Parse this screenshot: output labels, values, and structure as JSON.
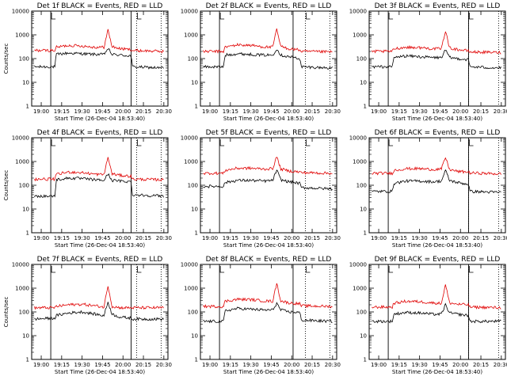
{
  "page": {
    "background": "#ffffff",
    "colors": {
      "events": "#000000",
      "lld": "#e00000",
      "frame": "#000000"
    }
  },
  "chart_data": [
    {
      "type": "line",
      "title": "Det 1f BLACK = Events, RED = LLD",
      "xlabel": "Start Time (26-Dec-04 18:53:40)",
      "ylabel": "Counts/sec",
      "y_scale": "log",
      "ylim": [
        1,
        10000
      ],
      "y_ticks": [
        "1",
        "10",
        "100",
        "1000",
        "10000"
      ],
      "x_ticks": [
        "19:00",
        "19:15",
        "19:30",
        "19:45",
        "20:00",
        "20:15",
        "20:30"
      ],
      "series": [
        {
          "color": "#000000",
          "x": [
            "18:55",
            "19:10",
            "19:11",
            "19:20",
            "19:30",
            "19:40",
            "19:46",
            "19:49",
            "19:52",
            "19:58",
            "20:06",
            "20:07",
            "20:30"
          ],
          "values": [
            45,
            45,
            150,
            170,
            160,
            150,
            150,
            260,
            150,
            140,
            130,
            45,
            40
          ]
        },
        {
          "color": "#e00000",
          "x": [
            "18:55",
            "19:10",
            "19:11",
            "19:20",
            "19:30",
            "19:40",
            "19:46",
            "19:49",
            "19:52",
            "19:58",
            "20:06",
            "20:07",
            "20:30"
          ],
          "values": [
            220,
            220,
            300,
            360,
            340,
            300,
            300,
            1600,
            320,
            260,
            240,
            220,
            200
          ]
        }
      ]
    },
    {
      "type": "line",
      "title": "Det 2f BLACK = Events, RED = LLD",
      "xlabel": "Start Time (26-Dec-04 18:53:40)",
      "ylabel": "",
      "y_scale": "log",
      "ylim": [
        1,
        10000
      ],
      "y_ticks": [
        "1",
        "10",
        "100",
        "1000",
        "10000"
      ],
      "x_ticks": [
        "19:00",
        "19:15",
        "19:30",
        "19:45",
        "20:00",
        "20:15",
        "20:30"
      ],
      "series": [
        {
          "color": "#000000",
          "x": [
            "18:55",
            "19:10",
            "19:11",
            "19:20",
            "19:30",
            "19:40",
            "19:46",
            "19:49",
            "19:52",
            "19:58",
            "20:06",
            "20:07",
            "20:30"
          ],
          "values": [
            45,
            45,
            140,
            160,
            150,
            140,
            140,
            260,
            140,
            120,
            100,
            45,
            40
          ]
        },
        {
          "color": "#e00000",
          "x": [
            "18:55",
            "19:10",
            "19:11",
            "19:20",
            "19:30",
            "19:40",
            "19:46",
            "19:49",
            "19:52",
            "19:58",
            "20:06",
            "20:07",
            "20:30"
          ],
          "values": [
            200,
            200,
            300,
            380,
            360,
            310,
            300,
            1700,
            320,
            260,
            230,
            200,
            190
          ]
        }
      ]
    },
    {
      "type": "line",
      "title": "Det 3f BLACK = Events, RED = LLD",
      "xlabel": "Start Time (26-Dec-04 18:53:40)",
      "ylabel": "",
      "y_scale": "log",
      "ylim": [
        1,
        10000
      ],
      "y_ticks": [
        "1",
        "10",
        "100",
        "1000",
        "10000"
      ],
      "x_ticks": [
        "19:00",
        "19:15",
        "19:30",
        "19:45",
        "20:00",
        "20:15",
        "20:30"
      ],
      "series": [
        {
          "color": "#000000",
          "x": [
            "18:55",
            "19:10",
            "19:11",
            "19:20",
            "19:30",
            "19:40",
            "19:46",
            "19:49",
            "19:52",
            "19:58",
            "20:06",
            "20:07",
            "20:30"
          ],
          "values": [
            45,
            45,
            110,
            130,
            120,
            110,
            110,
            230,
            110,
            100,
            90,
            45,
            40
          ]
        },
        {
          "color": "#e00000",
          "x": [
            "18:55",
            "19:10",
            "19:11",
            "19:20",
            "19:30",
            "19:40",
            "19:46",
            "19:49",
            "19:52",
            "19:58",
            "20:06",
            "20:07",
            "20:30"
          ],
          "values": [
            200,
            200,
            260,
            300,
            290,
            260,
            260,
            1500,
            280,
            240,
            210,
            190,
            180
          ]
        }
      ]
    },
    {
      "type": "line",
      "title": "Det 4f BLACK = Events, RED = LLD",
      "xlabel": "Start Time (26-Dec-04 18:53:40)",
      "ylabel": "Counts/sec",
      "y_scale": "log",
      "ylim": [
        1,
        10000
      ],
      "y_ticks": [
        "1",
        "10",
        "100",
        "1000",
        "10000"
      ],
      "x_ticks": [
        "19:00",
        "19:15",
        "19:30",
        "19:45",
        "20:00",
        "20:15",
        "20:30"
      ],
      "series": [
        {
          "color": "#000000",
          "x": [
            "18:55",
            "19:10",
            "19:11",
            "19:20",
            "19:30",
            "19:40",
            "19:46",
            "19:49",
            "19:52",
            "19:58",
            "20:06",
            "20:07",
            "20:30"
          ],
          "values": [
            35,
            35,
            170,
            200,
            190,
            170,
            160,
            300,
            160,
            150,
            140,
            40,
            35
          ]
        },
        {
          "color": "#e00000",
          "x": [
            "18:55",
            "19:10",
            "19:11",
            "19:20",
            "19:30",
            "19:40",
            "19:46",
            "19:49",
            "19:52",
            "19:58",
            "20:06",
            "20:07",
            "20:30"
          ],
          "values": [
            180,
            180,
            280,
            360,
            340,
            290,
            280,
            1500,
            300,
            260,
            240,
            180,
            170
          ]
        }
      ]
    },
    {
      "type": "line",
      "title": "Det 5f BLACK = Events, RED = LLD",
      "xlabel": "Start Time (26-Dec-04 18:53:40)",
      "ylabel": "",
      "y_scale": "log",
      "ylim": [
        1,
        10000
      ],
      "y_ticks": [
        "1",
        "10",
        "100",
        "1000",
        "10000"
      ],
      "x_ticks": [
        "19:00",
        "19:15",
        "19:30",
        "19:45",
        "20:00",
        "20:15",
        "20:30"
      ],
      "series": [
        {
          "color": "#000000",
          "x": [
            "18:55",
            "19:10",
            "19:11",
            "19:20",
            "19:30",
            "19:40",
            "19:46",
            "19:49",
            "19:52",
            "19:58",
            "20:06",
            "20:07",
            "20:30"
          ],
          "values": [
            90,
            90,
            130,
            160,
            160,
            150,
            160,
            430,
            170,
            140,
            120,
            80,
            70
          ]
        },
        {
          "color": "#e00000",
          "x": [
            "18:55",
            "19:10",
            "19:11",
            "19:20",
            "19:30",
            "19:40",
            "19:46",
            "19:49",
            "19:52",
            "19:58",
            "20:06",
            "20:07",
            "20:30"
          ],
          "values": [
            320,
            320,
            420,
            520,
            520,
            480,
            500,
            1600,
            480,
            400,
            360,
            340,
            320
          ]
        }
      ]
    },
    {
      "type": "line",
      "title": "Det 6f BLACK = Events, RED = LLD",
      "xlabel": "Start Time (26-Dec-04 18:53:40)",
      "ylabel": "",
      "y_scale": "log",
      "ylim": [
        1,
        10000
      ],
      "y_ticks": [
        "1",
        "10",
        "100",
        "1000",
        "10000"
      ],
      "x_ticks": [
        "19:00",
        "19:15",
        "19:30",
        "19:45",
        "20:00",
        "20:15",
        "20:30"
      ],
      "series": [
        {
          "color": "#000000",
          "x": [
            "18:55",
            "19:10",
            "19:11",
            "19:20",
            "19:30",
            "19:40",
            "19:46",
            "19:49",
            "19:52",
            "19:58",
            "20:06",
            "20:07",
            "20:30"
          ],
          "values": [
            55,
            55,
            120,
            150,
            150,
            140,
            150,
            420,
            160,
            130,
            110,
            55,
            50
          ]
        },
        {
          "color": "#e00000",
          "x": [
            "18:55",
            "19:10",
            "19:11",
            "19:20",
            "19:30",
            "19:40",
            "19:46",
            "19:49",
            "19:52",
            "19:58",
            "20:06",
            "20:07",
            "20:30"
          ],
          "values": [
            320,
            320,
            420,
            500,
            500,
            460,
            480,
            1500,
            460,
            380,
            360,
            330,
            300
          ]
        }
      ]
    },
    {
      "type": "line",
      "title": "Det 7f BLACK = Events, RED = LLD",
      "xlabel": "Start Time (26-Dec-04 18:53:40)",
      "ylabel": "Counts/sec",
      "y_scale": "log",
      "ylim": [
        1,
        10000
      ],
      "y_ticks": [
        "1",
        "10",
        "100",
        "1000",
        "10000"
      ],
      "x_ticks": [
        "19:00",
        "19:15",
        "19:30",
        "19:45",
        "20:00",
        "20:15",
        "20:30"
      ],
      "series": [
        {
          "color": "#000000",
          "x": [
            "18:55",
            "19:10",
            "19:11",
            "19:20",
            "19:30",
            "19:40",
            "19:46",
            "19:49",
            "19:52",
            "19:58",
            "20:06",
            "20:07",
            "20:30"
          ],
          "values": [
            50,
            55,
            70,
            90,
            100,
            80,
            70,
            260,
            80,
            60,
            55,
            50,
            50
          ]
        },
        {
          "color": "#e00000",
          "x": [
            "18:55",
            "19:10",
            "19:11",
            "19:20",
            "19:30",
            "19:40",
            "19:46",
            "19:49",
            "19:52",
            "19:58",
            "20:06",
            "20:07",
            "20:30"
          ],
          "values": [
            150,
            150,
            170,
            200,
            210,
            180,
            160,
            1300,
            170,
            150,
            150,
            150,
            150
          ]
        }
      ]
    },
    {
      "type": "line",
      "title": "Det 8f BLACK = Events, RED = LLD",
      "xlabel": "Start Time (26-Dec-04 18:53:40)",
      "ylabel": "",
      "y_scale": "log",
      "ylim": [
        1,
        10000
      ],
      "y_ticks": [
        "1",
        "10",
        "100",
        "1000",
        "10000"
      ],
      "x_ticks": [
        "19:00",
        "19:15",
        "19:30",
        "19:45",
        "20:00",
        "20:15",
        "20:30"
      ],
      "series": [
        {
          "color": "#000000",
          "x": [
            "18:55",
            "19:10",
            "19:11",
            "19:20",
            "19:30",
            "19:40",
            "19:46",
            "19:49",
            "19:52",
            "19:58",
            "20:06",
            "20:07",
            "20:30"
          ],
          "values": [
            40,
            40,
            110,
            140,
            130,
            120,
            120,
            230,
            120,
            100,
            95,
            45,
            40
          ]
        },
        {
          "color": "#e00000",
          "x": [
            "18:55",
            "19:10",
            "19:11",
            "19:20",
            "19:30",
            "19:40",
            "19:46",
            "19:49",
            "19:52",
            "19:58",
            "20:06",
            "20:07",
            "20:30"
          ],
          "values": [
            170,
            170,
            280,
            340,
            330,
            290,
            280,
            1600,
            290,
            240,
            220,
            180,
            170
          ]
        }
      ]
    },
    {
      "type": "line",
      "title": "Det 9f BLACK = Events, RED = LLD",
      "xlabel": "Start Time (26-Dec-04 18:53:40)",
      "ylabel": "",
      "y_scale": "log",
      "ylim": [
        1,
        10000
      ],
      "y_ticks": [
        "1",
        "10",
        "100",
        "1000",
        "10000"
      ],
      "x_ticks": [
        "19:00",
        "19:15",
        "19:30",
        "19:45",
        "20:00",
        "20:15",
        "20:30"
      ],
      "series": [
        {
          "color": "#000000",
          "x": [
            "18:55",
            "19:10",
            "19:11",
            "19:20",
            "19:30",
            "19:40",
            "19:46",
            "19:49",
            "19:52",
            "19:58",
            "20:06",
            "20:07",
            "20:30"
          ],
          "values": [
            40,
            40,
            80,
            95,
            90,
            80,
            80,
            200,
            90,
            80,
            70,
            40,
            40
          ]
        },
        {
          "color": "#e00000",
          "x": [
            "18:55",
            "19:10",
            "19:11",
            "19:20",
            "19:30",
            "19:40",
            "19:46",
            "19:49",
            "19:52",
            "19:58",
            "20:06",
            "20:07",
            "20:30"
          ],
          "values": [
            160,
            160,
            230,
            280,
            270,
            240,
            230,
            1400,
            240,
            210,
            200,
            160,
            150
          ]
        }
      ]
    }
  ]
}
